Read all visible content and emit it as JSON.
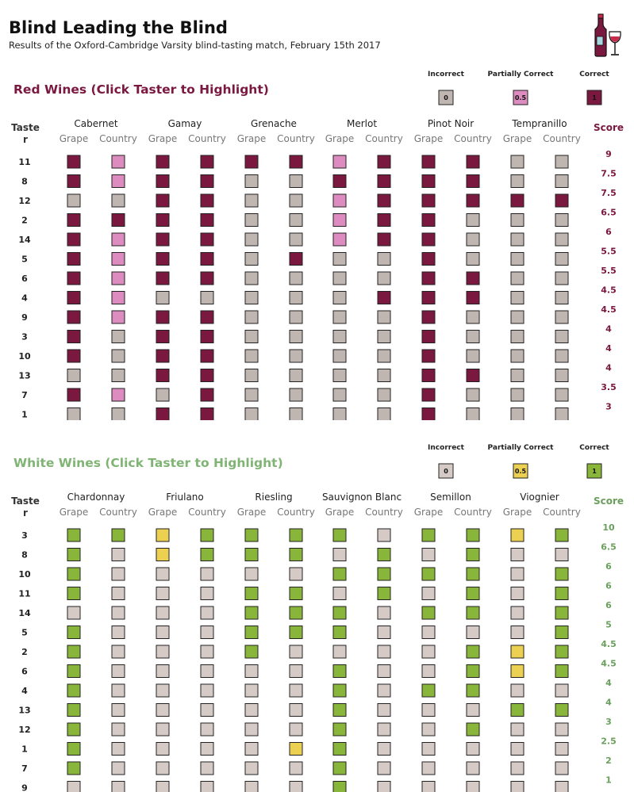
{
  "title": "Blind Leading the Blind",
  "subtitle": "Results of the Oxford-Cambridge Varsity blind-tasting match, February 15th 2017",
  "logo": "wine-bottle-glass-icon",
  "chart_data": [
    {
      "type": "heatmap",
      "name": "red",
      "section_title": "Red Wines (Click Taster to Highlight)",
      "row_header": "Taster",
      "score_header": "Score",
      "sub_headers": [
        "Grape",
        "Country"
      ],
      "wines": [
        "Cabernet",
        "Gamay",
        "Grenache",
        "Merlot",
        "Pinot Noir",
        "Tempranillo"
      ],
      "legend": [
        {
          "label": "Incorrect",
          "value": "0"
        },
        {
          "label": "Partially Correct",
          "value": "0.5"
        },
        {
          "label": "Correct",
          "value": "1"
        }
      ],
      "colors": {
        "0": "#c0b6b1",
        "0.5": "#dd8cbf",
        "1": "#7a1840",
        "title": "#7a1840",
        "score": "#7a1840"
      },
      "rows": [
        {
          "taster": "11",
          "score": "9",
          "cells": [
            1,
            0.5,
            1,
            1,
            1,
            1,
            0.5,
            1,
            1,
            1,
            0,
            0
          ]
        },
        {
          "taster": "8",
          "score": "7.5",
          "cells": [
            1,
            0.5,
            1,
            1,
            0,
            0,
            1,
            1,
            1,
            1,
            0,
            0
          ]
        },
        {
          "taster": "12",
          "score": "7.5",
          "cells": [
            0,
            0,
            1,
            1,
            0,
            0,
            0.5,
            1,
            1,
            1,
            1,
            1
          ]
        },
        {
          "taster": "2",
          "score": "6.5",
          "cells": [
            1,
            1,
            1,
            1,
            0,
            0,
            0.5,
            1,
            1,
            0,
            0,
            0
          ]
        },
        {
          "taster": "14",
          "score": "6",
          "cells": [
            1,
            0.5,
            1,
            1,
            0,
            0,
            0.5,
            1,
            1,
            0,
            0,
            0
          ]
        },
        {
          "taster": "5",
          "score": "5.5",
          "cells": [
            1,
            0.5,
            1,
            1,
            0,
            1,
            0,
            0,
            1,
            0,
            0,
            0
          ]
        },
        {
          "taster": "6",
          "score": "5.5",
          "cells": [
            1,
            0.5,
            1,
            1,
            0,
            0,
            0,
            0,
            1,
            1,
            0,
            0
          ]
        },
        {
          "taster": "4",
          "score": "4.5",
          "cells": [
            1,
            0.5,
            0,
            0,
            0,
            0,
            0,
            1,
            1,
            1,
            0,
            0
          ]
        },
        {
          "taster": "9",
          "score": "4.5",
          "cells": [
            1,
            0.5,
            1,
            1,
            0,
            0,
            0,
            0,
            1,
            0,
            0,
            0
          ]
        },
        {
          "taster": "3",
          "score": "4",
          "cells": [
            1,
            0,
            1,
            1,
            0,
            0,
            0,
            0,
            1,
            0,
            0,
            0
          ]
        },
        {
          "taster": "10",
          "score": "4",
          "cells": [
            1,
            0,
            1,
            1,
            0,
            0,
            0,
            0,
            1,
            0,
            0,
            0
          ]
        },
        {
          "taster": "13",
          "score": "4",
          "cells": [
            0,
            0,
            1,
            1,
            0,
            0,
            0,
            0,
            1,
            1,
            0,
            0
          ]
        },
        {
          "taster": "7",
          "score": "3.5",
          "cells": [
            1,
            0.5,
            0,
            1,
            0,
            0,
            0,
            0,
            1,
            0,
            0,
            0
          ]
        },
        {
          "taster": "1",
          "score": "3",
          "cells": [
            0,
            0,
            1,
            1,
            0,
            0,
            0,
            0,
            1,
            0,
            0,
            0
          ]
        }
      ]
    },
    {
      "type": "heatmap",
      "name": "white",
      "section_title": "White Wines (Click Taster to Highlight)",
      "row_header": "Taster",
      "score_header": "Score",
      "sub_headers": [
        "Grape",
        "Country"
      ],
      "wines": [
        "Chardonnay",
        "Friulano",
        "Riesling",
        "Sauvignon Blanc",
        "Semillon",
        "Viognier"
      ],
      "legend": [
        {
          "label": "Incorrect",
          "value": "0"
        },
        {
          "label": "Partially Correct",
          "value": "0.5"
        },
        {
          "label": "Correct",
          "value": "1"
        }
      ],
      "colors": {
        "0": "#d6cac7",
        "0.5": "#ecd052",
        "1": "#8ab53b",
        "title": "#80b474",
        "score": "#6a9f5c"
      },
      "rows": [
        {
          "taster": "3",
          "score": "10",
          "cells": [
            1,
            1,
            0.5,
            1,
            1,
            1,
            1,
            0,
            1,
            1,
            0.5,
            1
          ]
        },
        {
          "taster": "8",
          "score": "6.5",
          "cells": [
            1,
            0,
            0.5,
            1,
            1,
            1,
            0,
            1,
            0,
            1,
            0,
            0
          ]
        },
        {
          "taster": "10",
          "score": "6",
          "cells": [
            1,
            0,
            0,
            0,
            0,
            0,
            1,
            1,
            1,
            1,
            0,
            1
          ]
        },
        {
          "taster": "11",
          "score": "6",
          "cells": [
            1,
            0,
            0,
            0,
            1,
            1,
            0,
            1,
            0,
            1,
            0,
            1
          ]
        },
        {
          "taster": "14",
          "score": "6",
          "cells": [
            0,
            0,
            0,
            0,
            1,
            1,
            1,
            0,
            1,
            1,
            0,
            1
          ]
        },
        {
          "taster": "5",
          "score": "5",
          "cells": [
            1,
            0,
            0,
            0,
            1,
            1,
            1,
            0,
            0,
            0,
            0,
            1
          ]
        },
        {
          "taster": "2",
          "score": "4.5",
          "cells": [
            1,
            0,
            0,
            0,
            1,
            0,
            0,
            0,
            0,
            1,
            0.5,
            1
          ]
        },
        {
          "taster": "6",
          "score": "4.5",
          "cells": [
            1,
            0,
            0,
            0,
            0,
            0,
            1,
            0,
            0,
            1,
            0.5,
            1
          ]
        },
        {
          "taster": "4",
          "score": "4",
          "cells": [
            1,
            0,
            0,
            0,
            0,
            0,
            1,
            0,
            1,
            1,
            0,
            0
          ]
        },
        {
          "taster": "13",
          "score": "4",
          "cells": [
            1,
            0,
            0,
            0,
            0,
            0,
            1,
            0,
            0,
            0,
            1,
            1
          ]
        },
        {
          "taster": "12",
          "score": "3",
          "cells": [
            1,
            0,
            0,
            0,
            0,
            0,
            1,
            0,
            0,
            1,
            0,
            0
          ]
        },
        {
          "taster": "1",
          "score": "2.5",
          "cells": [
            1,
            0,
            0,
            0,
            0,
            0.5,
            1,
            0,
            0,
            0,
            0,
            0
          ]
        },
        {
          "taster": "7",
          "score": "2",
          "cells": [
            1,
            0,
            0,
            0,
            0,
            0,
            1,
            0,
            0,
            0,
            0,
            0
          ]
        },
        {
          "taster": "9",
          "score": "1",
          "cells": [
            0,
            0,
            0,
            0,
            0,
            0,
            1,
            0,
            0,
            0,
            0,
            0
          ]
        }
      ]
    }
  ]
}
